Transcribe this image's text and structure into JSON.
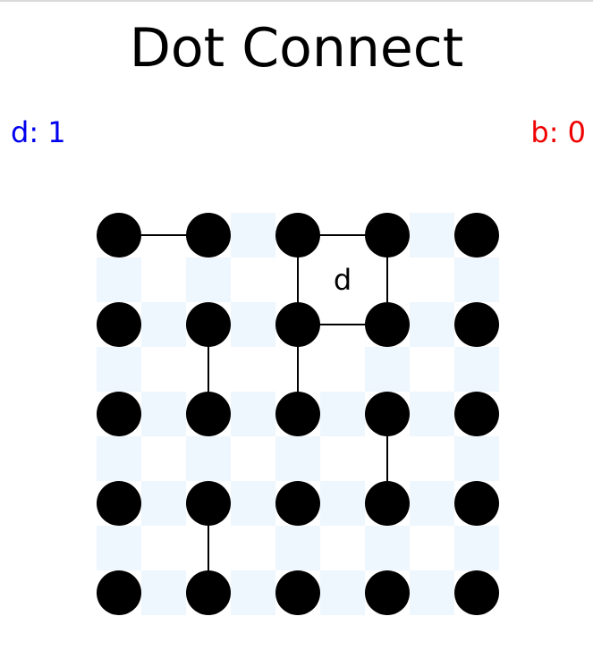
{
  "title": "Dot Connect",
  "score": {
    "d_label": "d: 1",
    "b_label": "b: 0",
    "d_color": "#0000ee",
    "b_color": "#ee0000"
  },
  "board": {
    "rows": 5,
    "cols": 5,
    "colors": {
      "dot": "#000000",
      "line": "#000000",
      "unclaimed_edge_shade": "#eef6fe",
      "background": "#ffffff"
    },
    "horizontal_lines": [
      {
        "row": 0,
        "col": 0
      },
      {
        "row": 0,
        "col": 2
      },
      {
        "row": 1,
        "col": 2
      }
    ],
    "vertical_lines": [
      {
        "row": 0,
        "col": 2
      },
      {
        "row": 0,
        "col": 3
      },
      {
        "row": 1,
        "col": 1
      },
      {
        "row": 1,
        "col": 2
      },
      {
        "row": 2,
        "col": 3
      },
      {
        "row": 3,
        "col": 1
      }
    ],
    "boxes": [
      {
        "row": 0,
        "col": 2,
        "owner": "d"
      }
    ]
  }
}
